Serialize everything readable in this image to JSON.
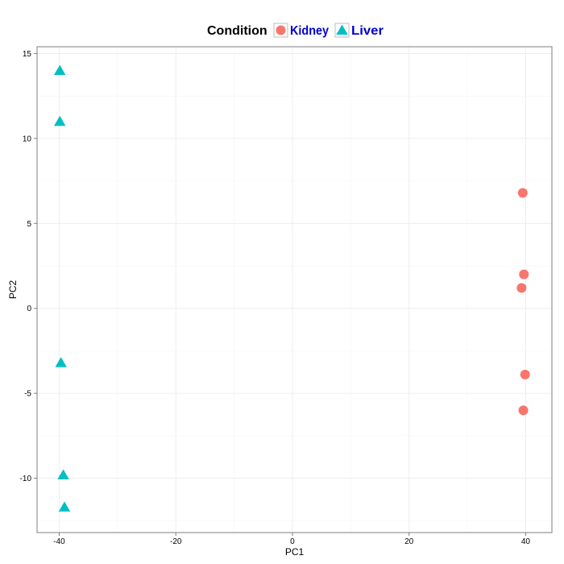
{
  "chart_data": {
    "type": "scatter",
    "title": "",
    "xlabel": "PC1",
    "ylabel": "PC2",
    "xlim": [
      -43.8,
      44.5
    ],
    "ylim": [
      -13.2,
      15.4
    ],
    "x_ticks": [
      -40,
      -20,
      0,
      20,
      40
    ],
    "y_ticks": [
      15,
      10,
      5,
      0,
      -5,
      -10
    ],
    "x_tick_labels": [
      "-40",
      "-20",
      "0",
      "20",
      "40"
    ],
    "y_tick_labels": [
      "15",
      "10",
      "5",
      "0",
      "-5",
      "-10"
    ],
    "grid": true,
    "legend": {
      "title": "Condition",
      "placement": "top"
    },
    "series": [
      {
        "name": "Kidney",
        "marker": "circle",
        "color": "#F8766D",
        "points": [
          [
            39.5,
            6.8
          ],
          [
            39.7,
            2.0
          ],
          [
            39.3,
            1.2
          ],
          [
            39.9,
            -3.9
          ],
          [
            39.6,
            -6.0
          ]
        ]
      },
      {
        "name": "Liver",
        "marker": "triangle",
        "color": "#00BFC4",
        "points": [
          [
            -39.9,
            14.0
          ],
          [
            -39.9,
            11.0
          ],
          [
            -39.7,
            -3.2
          ],
          [
            -39.3,
            -9.8
          ],
          [
            -39.1,
            -11.7
          ]
        ]
      }
    ],
    "legend_text_color": "#0000CC"
  }
}
